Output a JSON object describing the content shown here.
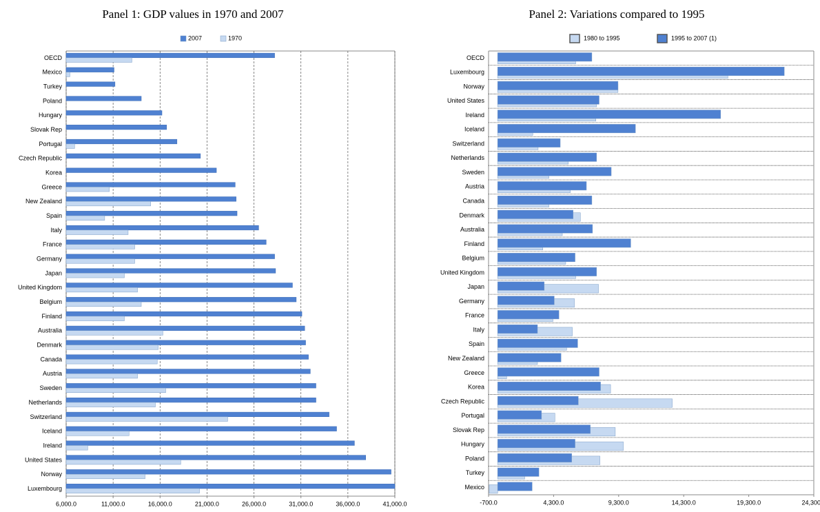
{
  "chart_data": [
    {
      "type": "bar",
      "orientation": "horizontal",
      "title": "Panel 1: GDP values in 1970 and 2007",
      "categories": [
        "OECD",
        "Mexico",
        "Turkey",
        "Poland",
        "Hungary",
        "Slovak Rep",
        "Portugal",
        "Czech Republic",
        "Korea",
        "Greece",
        "New Zealand",
        "Spain",
        "Italy",
        "France",
        "Germany",
        "Japan",
        "United Kingdom",
        "Belgium",
        "Finland",
        "Australia",
        "Denmark",
        "Canada",
        "Austria",
        "Sweden",
        "Netherlands",
        "Switzerland",
        "Iceland",
        "Ireland",
        "United States",
        "Norway",
        "Luxembourg"
      ],
      "series": [
        {
          "name": "2007",
          "color": "#4f81d1",
          "values": [
            28200,
            11100,
            11200,
            14000,
            16200,
            16700,
            17800,
            20300,
            22000,
            24000,
            24100,
            24200,
            26500,
            27300,
            28200,
            28300,
            30100,
            30500,
            31100,
            31400,
            31500,
            31800,
            32000,
            32600,
            32600,
            34000,
            34800,
            36700,
            37900,
            40600,
            41000
          ]
        },
        {
          "name": "1970",
          "color": "#c6d9f1",
          "values": [
            13000,
            6400,
            null,
            null,
            null,
            null,
            6900,
            null,
            null,
            10600,
            15000,
            10100,
            12600,
            13300,
            13300,
            12200,
            13600,
            14000,
            12200,
            16300,
            15800,
            15700,
            13600,
            16600,
            15500,
            23200,
            12700,
            8300,
            18200,
            14400,
            20200
          ]
        }
      ],
      "xlim": [
        6000,
        41000
      ],
      "xticks": [
        {
          "value": 6000,
          "label": "6,000.0"
        },
        {
          "value": 11000,
          "label": "11,000.0"
        },
        {
          "value": 16000,
          "label": "16,000.0"
        },
        {
          "value": 21000,
          "label": "21,000.0"
        },
        {
          "value": 26000,
          "label": "26,000.0"
        },
        {
          "value": 31000,
          "label": "31,000.0"
        },
        {
          "value": 36000,
          "label": "36,000.0"
        },
        {
          "value": 41000,
          "label": "41,000.0"
        }
      ],
      "grid": true,
      "legend": "top"
    },
    {
      "type": "bar",
      "orientation": "horizontal",
      "title": "Panel 2: Variations compared to 1995",
      "categories": [
        "OECD",
        "Luxembourg",
        "Norway",
        "United States",
        "Ireland",
        "Iceland",
        "Switzerland",
        "Netherlands",
        "Sweden",
        "Austria",
        "Canada",
        "Denmark",
        "Australia",
        "Finland",
        "Belgium",
        "United Kingdom",
        "Japan",
        "Germany",
        "France",
        "Italy",
        "Spain",
        "New Zealand",
        "Greece",
        "Korea",
        "Czech Republic",
        "Portugal",
        "Slovak Rep",
        "Hungary",
        "Poland",
        "Turkey",
        "Mexico"
      ],
      "series": [
        {
          "name": "1980 to 1995",
          "color": "#c6d9f1",
          "values": [
            6000,
            17700,
            9250,
            7600,
            7550,
            2700,
            3110,
            5430,
            3940,
            5590,
            3940,
            6360,
            4970,
            3470,
            5230,
            6000,
            7750,
            5900,
            4250,
            5740,
            5300,
            3060,
            690,
            8680,
            13420,
            4400,
            9040,
            9660,
            7860,
            2080,
            -650
          ]
        },
        {
          "name": "1995 to 2007 (1)",
          "color": "#4f81d1",
          "values": [
            7240,
            22030,
            9250,
            7800,
            17140,
            10590,
            4810,
            7600,
            8730,
            6820,
            7240,
            5800,
            7290,
            10230,
            5950,
            7600,
            3580,
            4350,
            4710,
            3060,
            6150,
            4870,
            7800,
            7910,
            6200,
            3370,
            7120,
            5950,
            5690,
            3170,
            2650
          ]
        }
      ],
      "xlim": [
        -700,
        24300
      ],
      "xticks": [
        {
          "value": -700,
          "label": "-700.0"
        },
        {
          "value": 4300,
          "label": "4,300.0"
        },
        {
          "value": 9300,
          "label": "9,300.0"
        },
        {
          "value": 14300,
          "label": "14,300.0"
        },
        {
          "value": 19300,
          "label": "19,300.0"
        },
        {
          "value": 24300,
          "label": "24,300.0"
        }
      ],
      "grid": false,
      "legend": "top"
    }
  ]
}
